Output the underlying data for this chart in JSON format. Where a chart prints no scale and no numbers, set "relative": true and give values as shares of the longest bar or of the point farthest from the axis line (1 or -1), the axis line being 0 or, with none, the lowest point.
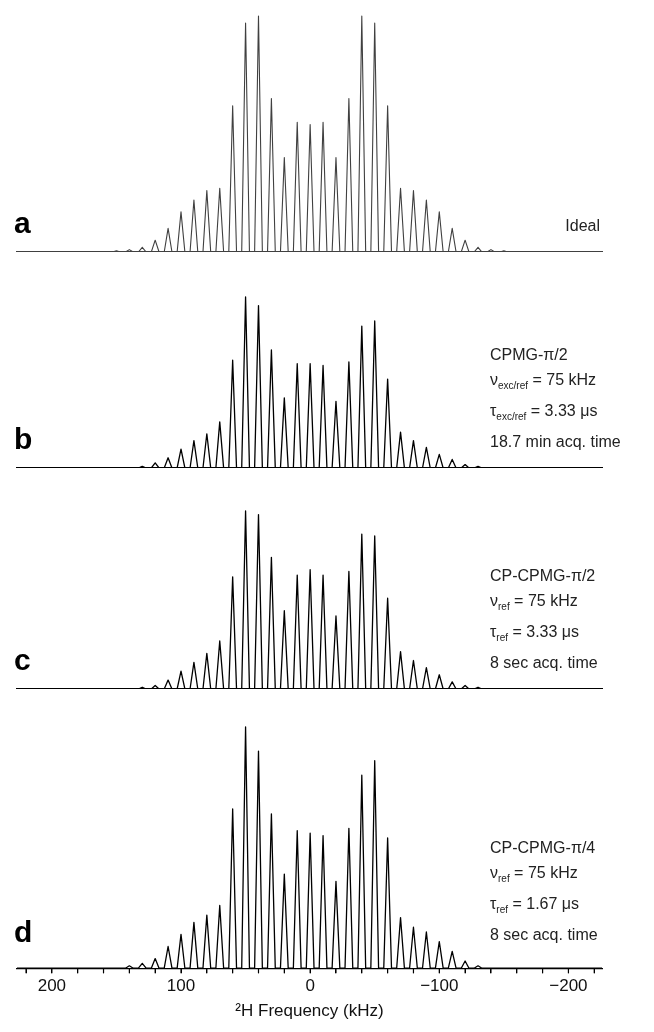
{
  "chart_data": [
    {
      "type": "line",
      "relative": true,
      "tick_labels": false,
      "xlim": [
        227,
        -226
      ],
      "annotations": [
        "a",
        "Ideal"
      ],
      "x": [
        227,
        153,
        150,
        147,
        143,
        140,
        137,
        133,
        130,
        127,
        123,
        120,
        117,
        113,
        110,
        107,
        103,
        100,
        97,
        93,
        90,
        87,
        83,
        80,
        77,
        73,
        70,
        67,
        63,
        60,
        57,
        53,
        50,
        47,
        43,
        40,
        37,
        33,
        30,
        27,
        23,
        20,
        17,
        13,
        10,
        7,
        3,
        0,
        -3,
        -7,
        -10,
        -13,
        -17,
        -20,
        -23,
        -27,
        -30,
        -33,
        -37,
        -40,
        -43,
        -47,
        -50,
        -53,
        -57,
        -60,
        -63,
        -67,
        -70,
        -73,
        -77,
        -80,
        -83,
        -87,
        -90,
        -93,
        -97,
        -100,
        -103,
        -107,
        -110,
        -113,
        -117,
        -120,
        -123,
        -127,
        -130,
        -133,
        -137,
        -140,
        -143,
        -147,
        -150,
        -153,
        -226
      ],
      "series": [
        {
          "color": "#404040",
          "values": [
            0,
            0,
            0.005,
            0,
            0,
            0.01,
            0,
            0,
            0.02,
            0,
            0,
            0.05,
            0,
            0,
            0.1,
            0,
            0,
            0.17,
            0,
            0,
            0.22,
            0,
            0,
            0.26,
            0,
            0,
            0.27,
            0,
            0,
            0.62,
            0,
            0,
            0.97,
            0,
            0,
            1,
            0,
            0,
            0.65,
            0,
            0,
            0.4,
            0,
            0,
            0.55,
            0,
            0,
            0.54,
            0,
            0,
            0.55,
            0,
            0,
            0.4,
            0,
            0,
            0.65,
            0,
            0,
            1,
            0,
            0,
            0.97,
            0,
            0,
            0.62,
            0,
            0,
            0.27,
            0,
            0,
            0.26,
            0,
            0,
            0.22,
            0,
            0,
            0.17,
            0,
            0,
            0.1,
            0,
            0,
            0.05,
            0,
            0,
            0.02,
            0,
            0,
            0.01,
            0,
            0,
            0.005,
            0,
            0
          ]
        }
      ]
    },
    {
      "type": "line",
      "relative": true,
      "tick_labels": false,
      "xlim": [
        227,
        -226
      ],
      "annotations": [
        "b",
        "CPMG-π/2",
        "ν$_{exc/ref}$ = 75 kHz",
        "τ$_{exc/ref}$ = 3.33 μs",
        "18.7 min acq. time"
      ],
      "x": [
        227,
        133,
        130,
        127,
        123,
        120,
        117,
        113,
        110,
        107,
        103,
        100,
        97,
        93,
        90,
        87,
        83,
        80,
        77,
        73,
        70,
        67,
        63,
        60,
        57,
        53,
        50,
        47,
        43,
        40,
        37,
        33,
        30,
        27,
        23,
        20,
        17,
        13,
        10,
        7,
        3,
        0,
        -3,
        -7,
        -10,
        -13,
        -17,
        -20,
        -23,
        -27,
        -30,
        -33,
        -37,
        -40,
        -43,
        -47,
        -50,
        -53,
        -57,
        -60,
        -63,
        -67,
        -70,
        -73,
        -77,
        -80,
        -83,
        -87,
        -90,
        -93,
        -97,
        -100,
        -103,
        -107,
        -110,
        -113,
        -117,
        -120,
        -123,
        -127,
        -130,
        -133,
        -226
      ],
      "series": [
        {
          "color": "#000000",
          "values": [
            0,
            0,
            0.01,
            0,
            0,
            0.03,
            0,
            0,
            0.06,
            0,
            0,
            0.11,
            0,
            0,
            0.16,
            0,
            0,
            0.2,
            0,
            0,
            0.27,
            0,
            0,
            0.63,
            0,
            0,
            1,
            0,
            0,
            0.95,
            0,
            0,
            0.69,
            0,
            0,
            0.41,
            0,
            0,
            0.61,
            0,
            0,
            0.61,
            0,
            0,
            0.6,
            0,
            0,
            0.39,
            0,
            0,
            0.62,
            0,
            0,
            0.83,
            0,
            0,
            0.86,
            0,
            0,
            0.52,
            0,
            0,
            0.21,
            0,
            0,
            0.16,
            0,
            0,
            0.12,
            0,
            0,
            0.08,
            0,
            0,
            0.05,
            0,
            0,
            0.02,
            0,
            0,
            0.01,
            0,
            0
          ]
        }
      ]
    },
    {
      "type": "line",
      "relative": true,
      "tick_labels": false,
      "xlim": [
        227,
        -226
      ],
      "annotations": [
        "c",
        "CP-CPMG-π/2",
        "ν$_{ref}$ = 75 kHz",
        "τ$_{ref}$ = 3.33 μs",
        "8 sec acq. time"
      ],
      "x": [
        227,
        133,
        130,
        127,
        123,
        120,
        117,
        113,
        110,
        107,
        103,
        100,
        97,
        93,
        90,
        87,
        83,
        80,
        77,
        73,
        70,
        67,
        63,
        60,
        57,
        53,
        50,
        47,
        43,
        40,
        37,
        33,
        30,
        27,
        23,
        20,
        17,
        13,
        10,
        7,
        3,
        0,
        -3,
        -7,
        -10,
        -13,
        -17,
        -20,
        -23,
        -27,
        -30,
        -33,
        -37,
        -40,
        -43,
        -47,
        -50,
        -53,
        -57,
        -60,
        -63,
        -67,
        -70,
        -73,
        -77,
        -80,
        -83,
        -87,
        -90,
        -93,
        -97,
        -100,
        -103,
        -107,
        -110,
        -113,
        -117,
        -120,
        -123,
        -127,
        -130,
        -133,
        -226
      ],
      "series": [
        {
          "color": "#000000",
          "values": [
            0,
            0,
            0.01,
            0,
            0,
            0.02,
            0,
            0,
            0.05,
            0,
            0,
            0.1,
            0,
            0,
            0.15,
            0,
            0,
            0.2,
            0,
            0,
            0.27,
            0,
            0,
            0.63,
            0,
            0,
            1,
            0,
            0,
            0.98,
            0,
            0,
            0.74,
            0,
            0,
            0.44,
            0,
            0,
            0.64,
            0,
            0,
            0.67,
            0,
            0,
            0.64,
            0,
            0,
            0.41,
            0,
            0,
            0.66,
            0,
            0,
            0.87,
            0,
            0,
            0.86,
            0,
            0,
            0.51,
            0,
            0,
            0.21,
            0,
            0,
            0.16,
            0,
            0,
            0.12,
            0,
            0,
            0.08,
            0,
            0,
            0.04,
            0,
            0,
            0.02,
            0,
            0,
            0.01,
            0,
            0
          ]
        }
      ]
    },
    {
      "type": "line",
      "relative": true,
      "tick_labels": "x",
      "xlim": [
        227,
        -226
      ],
      "xlabel": "²H Frequency (kHz)",
      "annotations": [
        "d",
        "CP-CPMG-π/4",
        "ν$_{ref}$ = 75 kHz",
        "τ$_{ref}$ = 1.67 μs",
        "8 sec acq. time"
      ],
      "xticks": [
        {
          "value": 220,
          "label": null
        },
        200,
        {
          "value": 180,
          "label": null
        },
        {
          "value": 160,
          "label": null
        },
        {
          "value": 140,
          "label": null
        },
        {
          "value": 120,
          "label": null
        },
        100,
        {
          "value": 80,
          "label": null
        },
        {
          "value": 60,
          "label": null
        },
        {
          "value": 40,
          "label": null
        },
        {
          "value": 20,
          "label": null
        },
        0,
        {
          "value": -20,
          "label": null
        },
        {
          "value": -40,
          "label": null
        },
        {
          "value": -60,
          "label": null
        },
        {
          "value": -80,
          "label": null
        },
        {
          "value": -100,
          "label": "−100"
        },
        {
          "value": -120,
          "label": null
        },
        {
          "value": -140,
          "label": null
        },
        {
          "value": -160,
          "label": null
        },
        {
          "value": -180,
          "label": null
        },
        {
          "value": -200,
          "label": "−200"
        },
        {
          "value": -220,
          "label": null
        }
      ],
      "x": [
        227,
        143,
        140,
        137,
        133,
        130,
        127,
        123,
        120,
        117,
        113,
        110,
        107,
        103,
        100,
        97,
        93,
        90,
        87,
        83,
        80,
        77,
        73,
        70,
        67,
        63,
        60,
        57,
        53,
        50,
        47,
        43,
        40,
        37,
        33,
        30,
        27,
        23,
        20,
        17,
        13,
        10,
        7,
        3,
        0,
        -3,
        -7,
        -10,
        -13,
        -17,
        -20,
        -23,
        -27,
        -30,
        -33,
        -37,
        -40,
        -43,
        -47,
        -50,
        -53,
        -57,
        -60,
        -63,
        -67,
        -70,
        -73,
        -77,
        -80,
        -83,
        -87,
        -90,
        -93,
        -97,
        -100,
        -103,
        -107,
        -110,
        -113,
        -117,
        -120,
        -123,
        -127,
        -130,
        -133,
        -226
      ],
      "series": [
        {
          "color": "#000000",
          "values": [
            0,
            0,
            0.01,
            0,
            0,
            0.02,
            0,
            0,
            0.04,
            0,
            0,
            0.09,
            0,
            0,
            0.14,
            0,
            0,
            0.19,
            0,
            0,
            0.22,
            0,
            0,
            0.26,
            0,
            0,
            0.66,
            0,
            0,
            1,
            0,
            0,
            0.9,
            0,
            0,
            0.64,
            0,
            0,
            0.39,
            0,
            0,
            0.57,
            0,
            0,
            0.56,
            0,
            0,
            0.55,
            0,
            0,
            0.36,
            0,
            0,
            0.58,
            0,
            0,
            0.8,
            0,
            0,
            0.86,
            0,
            0,
            0.54,
            0,
            0,
            0.21,
            0,
            0,
            0.17,
            0,
            0,
            0.15,
            0,
            0,
            0.11,
            0,
            0,
            0.07,
            0,
            0,
            0.03,
            0,
            0,
            0.01,
            0,
            0
          ]
        }
      ]
    }
  ]
}
